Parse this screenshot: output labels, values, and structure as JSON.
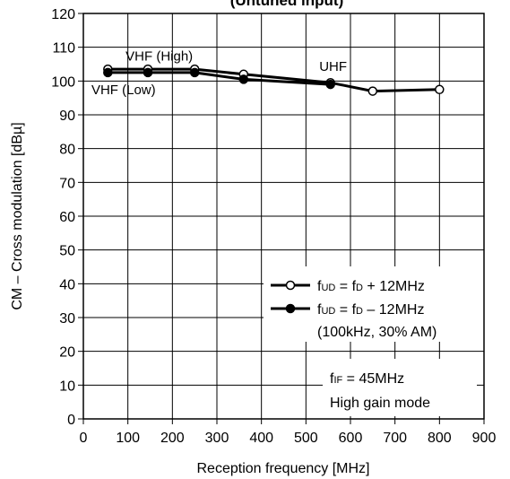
{
  "chart_data": {
    "type": "line",
    "title": "(Untuned input)",
    "xlabel": "Reception frequency [MHz]",
    "ylabel": "CM – Cross modulation [dBµ]",
    "xlim": [
      0,
      900
    ],
    "ylim": [
      0,
      120
    ],
    "xticks": [
      "0",
      "100",
      "200",
      "300",
      "400",
      "500",
      "600",
      "700",
      "800",
      "900"
    ],
    "yticks": [
      "0",
      "10",
      "20",
      "30",
      "40",
      "50",
      "60",
      "70",
      "80",
      "90",
      "100",
      "110",
      "120"
    ],
    "grid": true,
    "series": [
      {
        "key": "plus",
        "marker": "open-circle",
        "x": [
          55,
          145,
          250,
          360,
          555,
          650,
          800
        ],
        "y": [
          103.5,
          103.5,
          103.5,
          102,
          99.5,
          97,
          97.5
        ]
      },
      {
        "key": "minus",
        "marker": "filled-circle",
        "x": [
          55,
          145,
          250,
          360,
          555
        ],
        "y": [
          102.5,
          102.5,
          102.5,
          100.5,
          99
        ]
      }
    ],
    "annotations": [
      {
        "key": "vhf_high",
        "text": "VHF (High)"
      },
      {
        "key": "vhf_low",
        "text": "VHF (Low)"
      },
      {
        "key": "uhf",
        "text": "UHF"
      }
    ],
    "legend": {
      "placement": "bottom-right",
      "entries": [
        {
          "marker": "open-circle",
          "parts": [
            "f",
            "UD",
            " = f",
            "D",
            " + 12MHz"
          ]
        },
        {
          "marker": "filled-circle",
          "parts": [
            "f",
            "UD",
            " = f",
            "D",
            " – 12MHz"
          ]
        }
      ],
      "condition": "(100kHz, 30% AM)"
    },
    "notes": {
      "if_parts": [
        "f",
        "IF",
        " = 45MHz"
      ],
      "mode": "High gain mode"
    }
  }
}
